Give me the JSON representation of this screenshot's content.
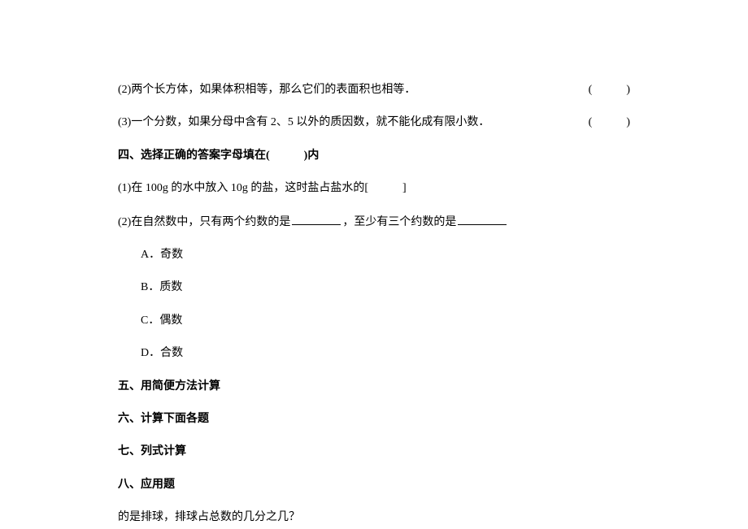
{
  "questions": {
    "q2": {
      "text": "(2)两个长方体，如果体积相等，那么它们的表面积也相等．",
      "paren": "(　　　)"
    },
    "q3": {
      "text": "(3)一个分数，如果分母中含有 2、5 以外的质因数，就不能化成有限小数．",
      "paren": "(　　　)"
    }
  },
  "section4": {
    "heading": "四、选择正确的答案字母填在(　　　)内",
    "q1": "(1)在 100g 的水中放入 10g 的盐，这时盐占盐水的[　　　]",
    "q2_pre": "(2)在自然数中，只有两个约数的是",
    "q2_mid": "，至少有三个约数的是",
    "options": {
      "a": "A．奇数",
      "b": "B．质数",
      "c": "C．偶数",
      "d": "D．合数"
    }
  },
  "section5": "五、用简便方法计算",
  "section6": "六、计算下面各题",
  "section7": "七、列式计算",
  "section8": "八、应用题",
  "lastLine": "的是排球，排球占总数的几分之几？"
}
